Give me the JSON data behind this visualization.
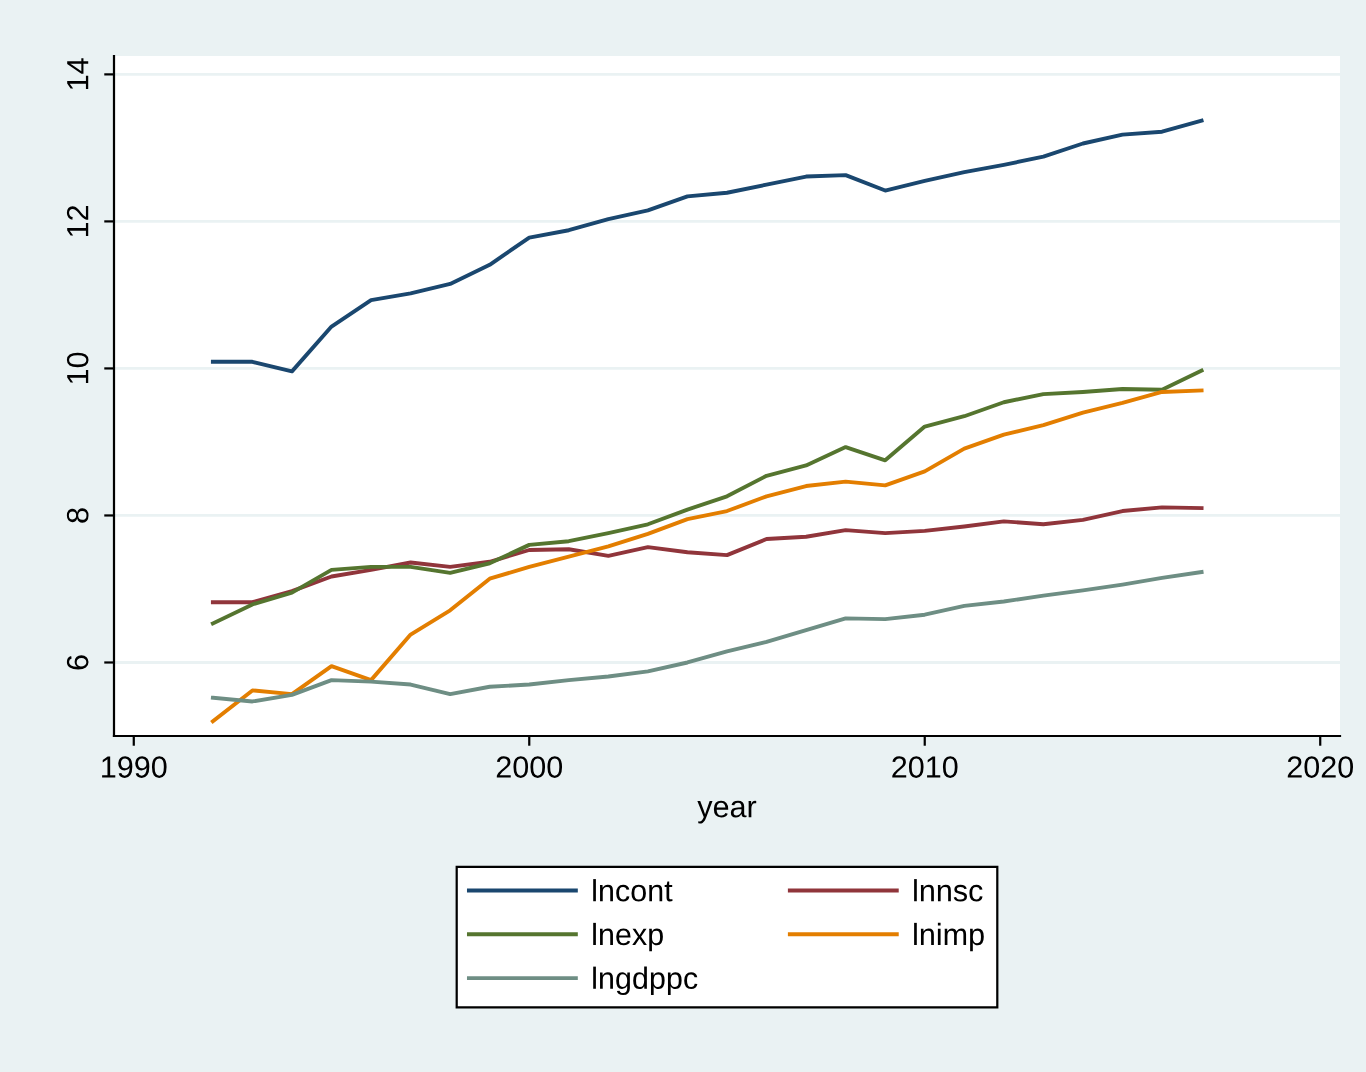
{
  "chart_data": {
    "type": "line",
    "xlabel": "year",
    "x": [
      1992,
      1993,
      1994,
      1995,
      1996,
      1997,
      1998,
      1999,
      2000,
      2001,
      2002,
      2003,
      2004,
      2005,
      2006,
      2007,
      2008,
      2009,
      2010,
      2011,
      2012,
      2013,
      2014,
      2015,
      2016,
      2017
    ],
    "series": [
      {
        "name": "lncont",
        "color": "#1a476f",
        "values": [
          10.09,
          10.09,
          9.96,
          10.57,
          10.93,
          11.02,
          11.15,
          11.41,
          11.78,
          11.88,
          12.03,
          12.15,
          12.34,
          12.39,
          12.5,
          12.61,
          12.63,
          12.42,
          12.55,
          12.67,
          12.77,
          12.88,
          13.06,
          13.18,
          13.22,
          13.37
        ]
      },
      {
        "name": "lnnsc",
        "color": "#90353b",
        "values": [
          6.82,
          6.82,
          6.97,
          7.17,
          7.26,
          7.36,
          7.3,
          7.37,
          7.53,
          7.54,
          7.45,
          7.57,
          7.5,
          7.46,
          7.68,
          7.71,
          7.8,
          7.76,
          7.79,
          7.85,
          7.92,
          7.88,
          7.94,
          8.06,
          8.11,
          8.1
        ]
      },
      {
        "name": "lnexp",
        "color": "#55752f",
        "values": [
          6.53,
          6.79,
          6.95,
          7.26,
          7.3,
          7.3,
          7.22,
          7.35,
          7.6,
          7.65,
          7.76,
          7.88,
          8.08,
          8.26,
          8.54,
          8.68,
          8.93,
          8.75,
          9.21,
          9.35,
          9.54,
          9.65,
          9.68,
          9.72,
          9.71,
          9.97
        ]
      },
      {
        "name": "lnimp",
        "color": "#e37e00",
        "values": [
          5.2,
          5.62,
          5.57,
          5.95,
          5.76,
          6.38,
          6.71,
          7.14,
          7.3,
          7.44,
          7.58,
          7.75,
          7.95,
          8.06,
          8.26,
          8.4,
          8.46,
          8.41,
          8.6,
          8.91,
          9.1,
          9.23,
          9.4,
          9.53,
          9.68,
          9.7
        ]
      },
      {
        "name": "lngdppc",
        "color": "#6e8e84",
        "values": [
          5.52,
          5.47,
          5.56,
          5.76,
          5.74,
          5.7,
          5.57,
          5.67,
          5.7,
          5.76,
          5.81,
          5.88,
          6.0,
          6.15,
          6.28,
          6.44,
          6.6,
          6.59,
          6.65,
          6.77,
          6.83,
          6.91,
          6.98,
          7.06,
          7.15,
          7.23
        ]
      }
    ],
    "xlim": [
      1989.5,
      2020.5
    ],
    "xticks": [
      1990,
      2000,
      2010,
      2020
    ],
    "ylim": [
      5.0,
      14.25
    ],
    "yticks": [
      6,
      8,
      10,
      12,
      14
    ],
    "grid": "y",
    "legend": "bottom",
    "marker": "none",
    "line_style": "solid"
  }
}
